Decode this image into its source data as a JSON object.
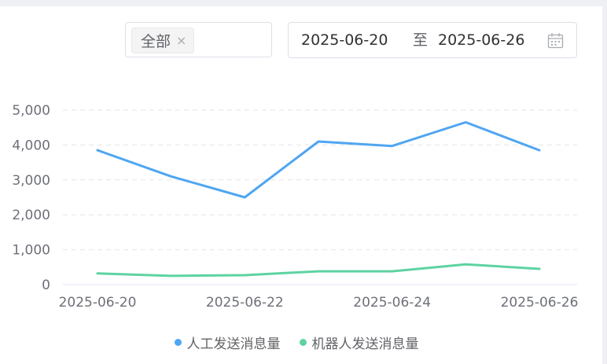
{
  "filters": {
    "select_tag": "全部",
    "tag_close": "×",
    "date_start": "2025-06-20",
    "date_separator": "至",
    "date_end": "2025-06-26",
    "calendar_icon": "calendar-icon"
  },
  "colors": {
    "series_1": "#4fa6f2",
    "series_2": "#5dd3a1",
    "grid": "#e6e6e6",
    "axis_text": "#6e7079"
  },
  "chart_data": {
    "type": "line",
    "x": [
      "2025-06-20",
      "2025-06-21",
      "2025-06-22",
      "2025-06-23",
      "2025-06-24",
      "2025-06-25",
      "2025-06-26"
    ],
    "x_tick_labels": [
      "2025-06-20",
      "2025-06-22",
      "2025-06-24",
      "2025-06-26"
    ],
    "y_tick_labels": [
      "0",
      "1,000",
      "2,000",
      "3,000",
      "4,000",
      "5,000"
    ],
    "ylim": [
      0,
      5000
    ],
    "grid": "horizontal dashed",
    "legend_position": "bottom",
    "series": [
      {
        "name": "人工发送消息量",
        "values": [
          3850,
          3100,
          2500,
          4100,
          3970,
          4650,
          3850
        ]
      },
      {
        "name": "机器人发送消息量",
        "values": [
          320,
          250,
          270,
          380,
          380,
          580,
          450
        ]
      }
    ]
  }
}
